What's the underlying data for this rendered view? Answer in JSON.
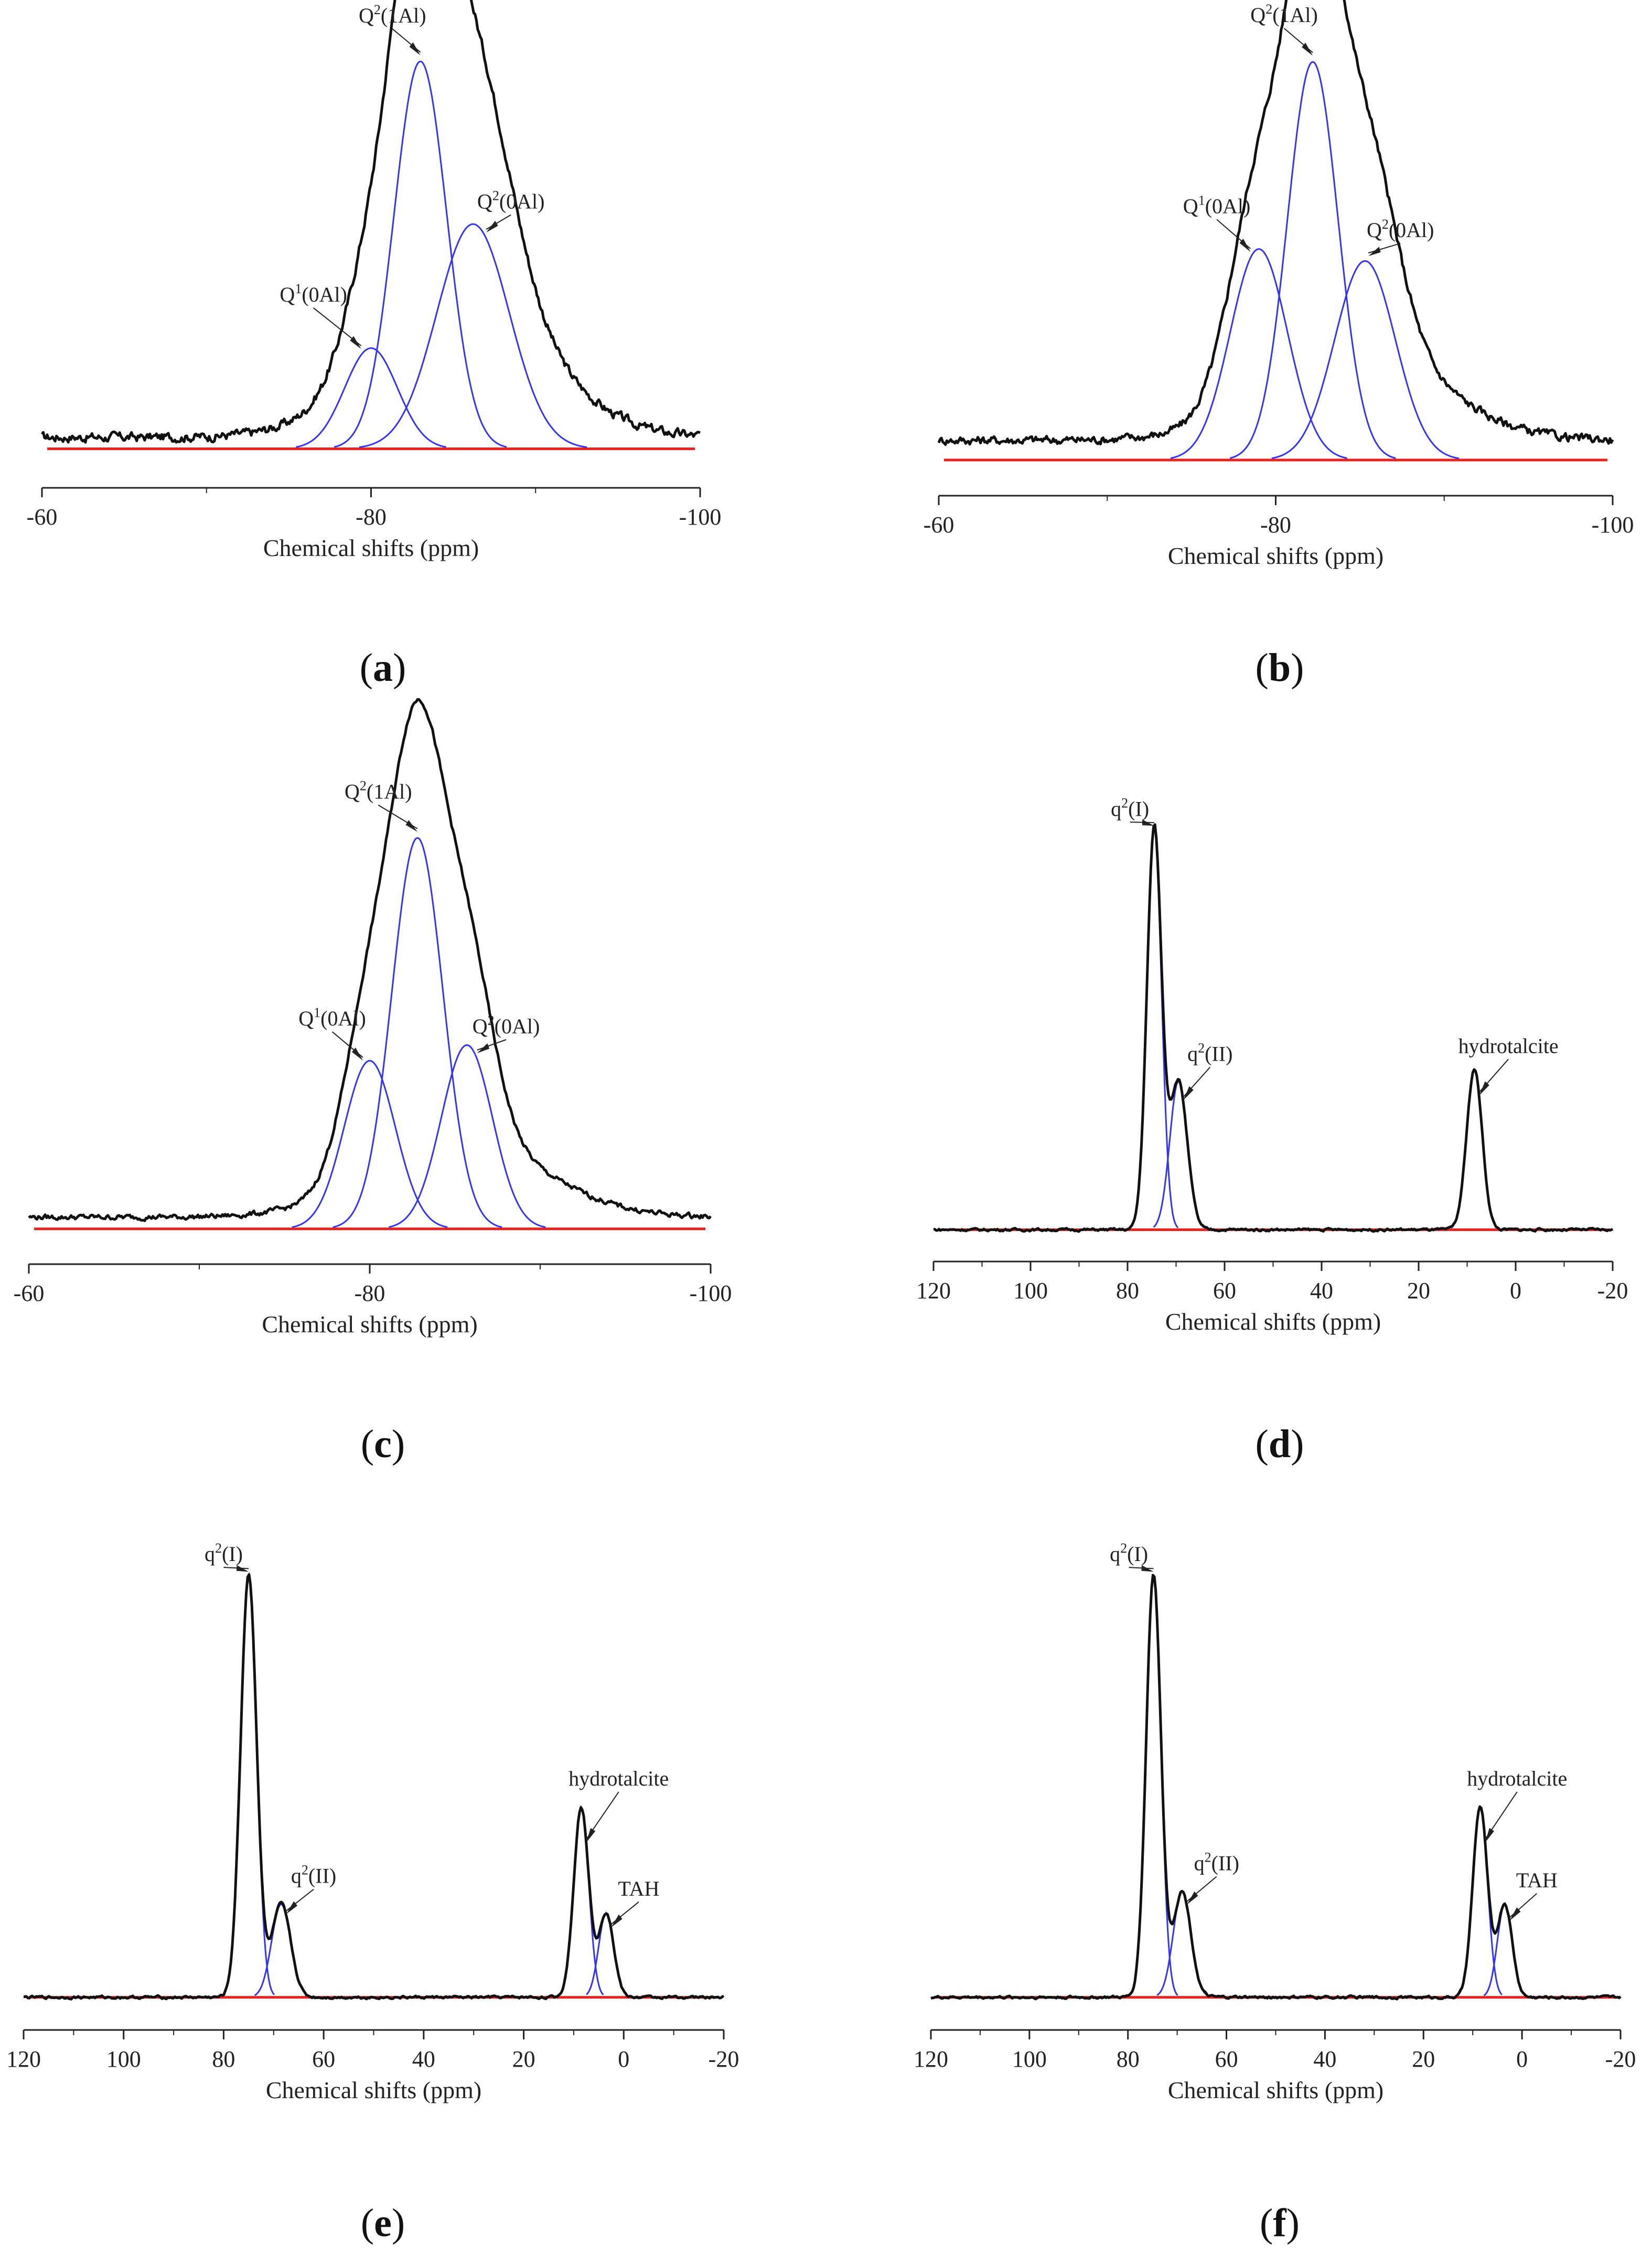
{
  "figure": {
    "colors": {
      "experimental": "#111111",
      "fit": "#3333ff",
      "fit_dark": "#1a1a99",
      "baseline": "#e8231f",
      "axis": "#222222",
      "text": "#222222"
    }
  },
  "chart_data": [
    {
      "panel": "a",
      "type": "line",
      "caption": "a",
      "xlabel": "Chemical shifts (ppm)",
      "xlim": [
        -60,
        -100
      ],
      "xticks": [
        -60,
        -80,
        -100
      ],
      "ylim": [
        -0.06,
        1.05
      ],
      "series": [
        {
          "name": "Q1(0Al)",
          "center": -80,
          "height": 0.26,
          "width": 1.6
        },
        {
          "name": "Q2(1Al)",
          "center": -83,
          "height": 1.0,
          "width": 1.6
        },
        {
          "name": "Q2(0Al)",
          "center": -86.2,
          "height": 0.58,
          "width": 2.2
        }
      ],
      "noise": {
        "amplitude": 0.022,
        "base": 0.03,
        "extra_tail": 0.4
      },
      "annotations": [
        {
          "sup": "1",
          "base": "Q",
          "tail": "(0Al)",
          "target": -79.4,
          "pos": -76.5,
          "ty": 0.38
        },
        {
          "sup": "2",
          "base": "Q",
          "tail": "(1Al)",
          "target": -83,
          "pos": -81.3,
          "ty": 1.1
        },
        {
          "sup": "2",
          "base": "Q",
          "tail": "(0Al)",
          "target": -87,
          "pos": -88.5,
          "ty": 0.62
        }
      ]
    },
    {
      "panel": "b",
      "type": "line",
      "caption": "b",
      "xlabel": "Chemical shifts (ppm)",
      "xlim": [
        -60,
        -100
      ],
      "xticks": [
        -60,
        -80,
        -100
      ],
      "ylim": [
        -0.05,
        1.05
      ],
      "series": [
        {
          "name": "Q1(0Al)",
          "center": -79,
          "height": 0.53,
          "width": 1.7
        },
        {
          "name": "Q2(1Al)",
          "center": -82.2,
          "height": 1.0,
          "width": 1.5
        },
        {
          "name": "Q2(0Al)",
          "center": -85.3,
          "height": 0.5,
          "width": 1.8
        }
      ],
      "noise": {
        "amplitude": 0.02,
        "base": 0.05,
        "extra_tail": 0.25
      },
      "annotations": [
        {
          "sup": "1",
          "base": "Q",
          "tail": "(0Al)",
          "target": -78.5,
          "pos": -76.5,
          "ty": 0.62
        },
        {
          "sup": "2",
          "base": "Q",
          "tail": "(1Al)",
          "target": -82.2,
          "pos": -80.5,
          "ty": 1.1
        },
        {
          "sup": "2",
          "base": "Q",
          "tail": "(0Al)",
          "target": -85.5,
          "pos": -87.4,
          "ty": 0.56
        }
      ]
    },
    {
      "panel": "c",
      "type": "line",
      "caption": "c",
      "xlabel": "Chemical shifts (ppm)",
      "xlim": [
        -60,
        -100
      ],
      "xticks": [
        -60,
        -80,
        -100
      ],
      "ylim": [
        -0.05,
        1.05
      ],
      "series": [
        {
          "name": "Q1(0Al)",
          "center": -80,
          "height": 0.43,
          "width": 1.5
        },
        {
          "name": "Q2(1Al)",
          "center": -82.8,
          "height": 1.0,
          "width": 1.5
        },
        {
          "name": "Q2(0Al)",
          "center": -85.7,
          "height": 0.47,
          "width": 1.5
        }
      ],
      "noise": {
        "amplitude": 0.012,
        "base": 0.03,
        "extra_tail": 0.2
      },
      "annotations": [
        {
          "sup": "1",
          "base": "Q",
          "tail": "(0Al)",
          "target": -79.6,
          "pos": -77.8,
          "ty": 0.52
        },
        {
          "sup": "2",
          "base": "Q",
          "tail": "(1Al)",
          "target": -82.8,
          "pos": -80.5,
          "ty": 1.1
        },
        {
          "sup": "2",
          "base": "Q",
          "tail": "(0Al)",
          "target": -86.3,
          "pos": -88,
          "ty": 0.5
        }
      ]
    },
    {
      "panel": "d",
      "type": "line",
      "caption": "d",
      "xlabel": "Chemical shifts (ppm)",
      "xlim": [
        120,
        -20
      ],
      "xticks": [
        120,
        100,
        80,
        60,
        40,
        20,
        0,
        -20
      ],
      "ylim": [
        -0.04,
        1.05
      ],
      "series": [
        {
          "name": "q2(I)",
          "center": 74.5,
          "height": 1.0,
          "width": 1.5
        },
        {
          "name": "q2(II)",
          "center": 69.5,
          "height": 0.37,
          "width": 1.8
        },
        {
          "name": "hydrotalcite",
          "center": 8.5,
          "height": 0.4,
          "width": 1.6
        }
      ],
      "noise": {
        "amplitude": 0.006,
        "base": 0.0,
        "extra_tail": 0.0
      },
      "annotations": [
        {
          "sup": "2",
          "base": "q",
          "tail": "(I)",
          "target": 74.5,
          "pos": 79.5,
          "ty": 1.03
        },
        {
          "sup": "2",
          "base": "q",
          "tail": "(II)",
          "target": 68.5,
          "pos": 63,
          "ty": 0.42
        },
        {
          "sup": "",
          "base": "hydrotalcite",
          "tail": "",
          "target": 7.5,
          "pos": 1.5,
          "ty": 0.44
        }
      ]
    },
    {
      "panel": "e",
      "type": "line",
      "caption": "e",
      "xlabel": "Chemical shifts (ppm)",
      "xlim": [
        120,
        -20
      ],
      "xticks": [
        120,
        100,
        80,
        60,
        40,
        20,
        0,
        -20
      ],
      "ylim": [
        -0.04,
        1.05
      ],
      "series": [
        {
          "name": "q2(I)",
          "center": 75,
          "height": 1.0,
          "width": 1.6
        },
        {
          "name": "q2(II)",
          "center": 68.5,
          "height": 0.22,
          "width": 1.9
        },
        {
          "name": "hydrotalcite",
          "center": 8.5,
          "height": 0.45,
          "width": 1.5
        },
        {
          "name": "TAH",
          "center": 3.5,
          "height": 0.2,
          "width": 1.5
        }
      ],
      "noise": {
        "amplitude": 0.006,
        "base": 0.0,
        "extra_tail": 0.0
      },
      "annotations": [
        {
          "sup": "2",
          "base": "q",
          "tail": "(I)",
          "target": 75,
          "pos": 80,
          "ty": 1.03
        },
        {
          "sup": "2",
          "base": "q",
          "tail": "(II)",
          "target": 67.5,
          "pos": 62,
          "ty": 0.27
        },
        {
          "sup": "",
          "base": "hydrotalcite",
          "tail": "",
          "target": 7.5,
          "pos": 1,
          "ty": 0.5
        },
        {
          "sup": "",
          "base": "TAH",
          "tail": "",
          "target": 2.5,
          "pos": -3,
          "ty": 0.24
        }
      ]
    },
    {
      "panel": "f",
      "type": "line",
      "caption": "f",
      "xlabel": "Chemical shifts (ppm)",
      "xlim": [
        120,
        -20
      ],
      "xticks": [
        120,
        100,
        80,
        60,
        40,
        20,
        0,
        -20
      ],
      "ylim": [
        -0.04,
        1.05
      ],
      "series": [
        {
          "name": "q2(I)",
          "center": 74.8,
          "height": 1.0,
          "width": 1.5
        },
        {
          "name": "q2(II)",
          "center": 69,
          "height": 0.25,
          "width": 1.8
        },
        {
          "name": "hydrotalcite",
          "center": 8.5,
          "height": 0.45,
          "width": 1.5
        },
        {
          "name": "TAH",
          "center": 3.5,
          "height": 0.22,
          "width": 1.5
        }
      ],
      "noise": {
        "amplitude": 0.006,
        "base": 0.0,
        "extra_tail": 0.0
      },
      "annotations": [
        {
          "sup": "2",
          "base": "q",
          "tail": "(I)",
          "target": 74.8,
          "pos": 79.8,
          "ty": 1.03
        },
        {
          "sup": "2",
          "base": "q",
          "tail": "(II)",
          "target": 68,
          "pos": 62,
          "ty": 0.3
        },
        {
          "sup": "",
          "base": "hydrotalcite",
          "tail": "",
          "target": 7.5,
          "pos": 1,
          "ty": 0.5
        },
        {
          "sup": "",
          "base": "TAH",
          "tail": "",
          "target": 2.5,
          "pos": -3,
          "ty": 0.26
        }
      ]
    }
  ]
}
